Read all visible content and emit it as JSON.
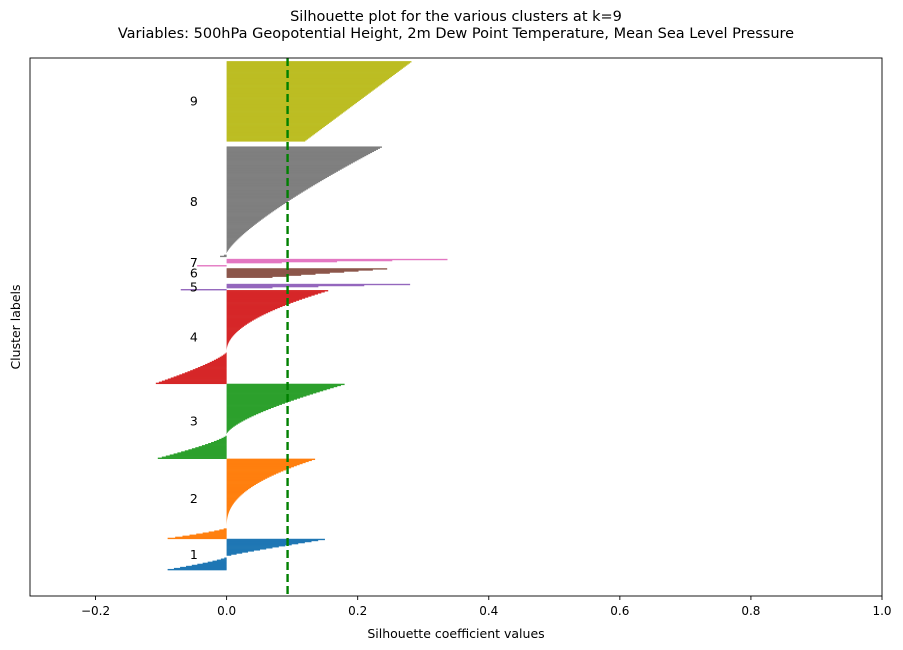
{
  "chart_data": {
    "type": "bar",
    "orientation": "horizontal",
    "title": "Silhouette plot for the various clusters at k=9",
    "subtitle": "Variables: 500hPa Geopotential Height, 2m Dew Point Temperature, Mean Sea Level Pressure",
    "xlabel": "Silhouette coefficient values",
    "ylabel": "Cluster labels",
    "xlim": [
      -0.3,
      1.0
    ],
    "ylim": [
      0,
      517
    ],
    "xticks": [
      -0.2,
      0.0,
      0.2,
      0.4,
      0.6,
      0.8,
      1.0
    ],
    "xtick_labels": [
      "−0.2",
      "0.0",
      "0.2",
      "0.4",
      "0.6",
      "0.8",
      "1.0"
    ],
    "average_line": {
      "x": 0.093,
      "color": "#008000",
      "style": "dashed"
    },
    "clusters": [
      {
        "label": "1",
        "color": "#1f77b4",
        "y_start": 25,
        "size": 30,
        "max": 0.15,
        "min": -0.09,
        "pos_frac": 0.58,
        "curve": 1.1
      },
      {
        "label": "2",
        "color": "#ff7f0e",
        "y_start": 55,
        "size": 77,
        "max": 0.135,
        "min": -0.09,
        "pos_frac": 0.86,
        "curve": 2.4
      },
      {
        "label": "3",
        "color": "#2ca02c",
        "y_start": 132,
        "size": 72,
        "max": 0.18,
        "min": -0.105,
        "pos_frac": 0.68,
        "curve": 1.5
      },
      {
        "label": "4",
        "color": "#d62728",
        "y_start": 204,
        "size": 90,
        "max": 0.155,
        "min": -0.108,
        "pos_frac": 0.65,
        "curve": 2.0
      },
      {
        "label": "5",
        "color": "#9467bd",
        "y_start": 294,
        "size": 6,
        "max": 0.28,
        "min": -0.07,
        "pos_frac": 0.75,
        "curve": 1.0
      },
      {
        "label": "6",
        "color": "#8c564b",
        "y_start": 306,
        "size": 9,
        "max": 0.245,
        "min": 0.07,
        "pos_frac": 1.0,
        "curve": 1.0
      },
      {
        "label": "7",
        "color": "#e377c2",
        "y_start": 317,
        "size": 7,
        "max": 0.337,
        "min": -0.045,
        "pos_frac": 0.7,
        "curve": 1.0
      },
      {
        "label": "8",
        "color": "#7f7f7f",
        "y_start": 326,
        "size": 106,
        "max": 0.237,
        "min": -0.01,
        "pos_frac": 0.97,
        "curve": 1.3
      },
      {
        "label": "9",
        "color": "#bcbd22",
        "y_start": 437,
        "size": 77,
        "max": 0.282,
        "min": 0.12,
        "pos_frac": 1.0,
        "curve": 1.0
      }
    ]
  }
}
